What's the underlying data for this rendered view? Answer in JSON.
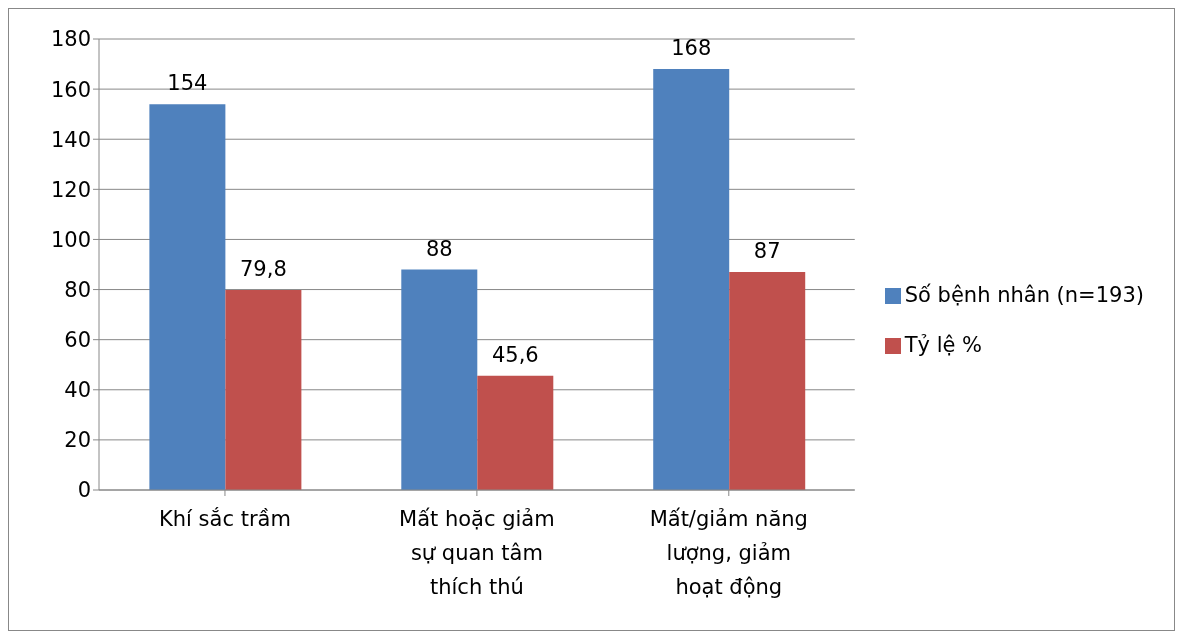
{
  "chart_data": {
    "type": "bar",
    "categories": [
      "Khí sắc trầm",
      "Mất hoặc giảm sự quan tâm thích thú",
      "Mất/giảm năng lượng, giảm hoạt động"
    ],
    "series": [
      {
        "name": "Số bệnh nhân (n=193)",
        "color": "#4f81bd",
        "values": [
          154,
          88,
          168
        ],
        "value_labels": [
          "154",
          "88",
          "168"
        ]
      },
      {
        "name": "Tỷ lệ %",
        "color": "#c0504d",
        "values": [
          79.8,
          45.6,
          87
        ],
        "value_labels": [
          "79,8",
          "45,6",
          "87"
        ]
      }
    ],
    "ylim": [
      0,
      180
    ],
    "yticks": [
      0,
      20,
      40,
      60,
      80,
      100,
      120,
      140,
      160,
      180
    ],
    "grid": "y",
    "legend": "right"
  }
}
